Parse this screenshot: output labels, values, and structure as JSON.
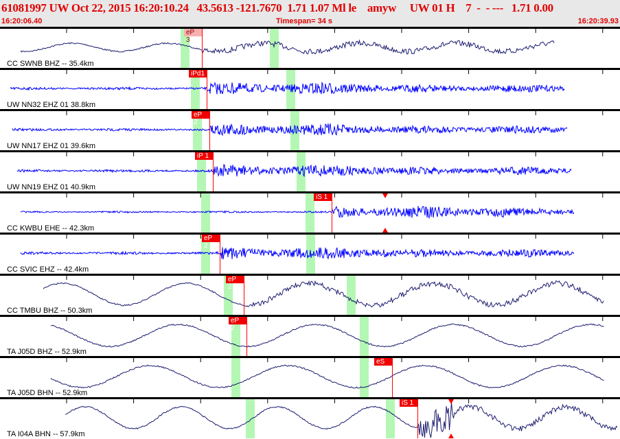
{
  "header": {
    "title": "61081997 UW Oct 22, 2015 16:20:10.24   43.5613 -121.7670  1.71 1.07 Ml le    amyw     UW 01 H    7  -  - ---   1.71 0.00",
    "start_time": "16:20:06.40",
    "timespan": "Timespan=  34 s",
    "end_time": "16:20:39.93"
  },
  "colors": {
    "short_period": "#0000ff",
    "broadband": "#1a1a6e",
    "pick": "#f00000",
    "window": "#b4f7b4"
  },
  "panels": [
    {
      "label": "CC SWNB BHZ -- 35.4km",
      "type": "broadband",
      "pick": {
        "label": "eP 3",
        "light": true
      },
      "triangle": false
    },
    {
      "label": "UW NN32 EHZ 01 38.8km",
      "type": "short_period",
      "pick": {
        "label": "iPd1"
      },
      "triangle": false
    },
    {
      "label": "UW NN17 EHZ 01 39.6km",
      "type": "short_period",
      "pick": {
        "label": "eP 2"
      },
      "triangle": false
    },
    {
      "label": "UW NN19 EHZ 01 40.9km",
      "type": "short_period",
      "pick": {
        "label": "iP 1"
      },
      "triangle": false
    },
    {
      "label": "CC KWBU EHE -- 42.3km",
      "type": "short_period",
      "pick": {
        "label": "iS 1"
      },
      "triangle": true
    },
    {
      "label": "CC SVIC EHZ -- 42.4km",
      "type": "short_period",
      "pick": {
        "label": "eP 2"
      },
      "triangle": false
    },
    {
      "label": "CC TMBU BHZ -- 50.3km",
      "type": "broadband",
      "pick": {
        "label": "eP 2"
      },
      "triangle": false
    },
    {
      "label": "TA J05D BHZ -- 52.9km",
      "type": "broadband",
      "pick": {
        "label": "eP 2"
      },
      "triangle": false
    },
    {
      "label": "TA J05D BHN -- 52.9km",
      "type": "broadband",
      "pick": {
        "label": "eS 2"
      },
      "triangle": false
    },
    {
      "label": "TA I04A BHN -- 57.9km",
      "type": "broadband",
      "pick": {
        "label": "iS 1"
      },
      "triangle": true
    }
  ]
}
